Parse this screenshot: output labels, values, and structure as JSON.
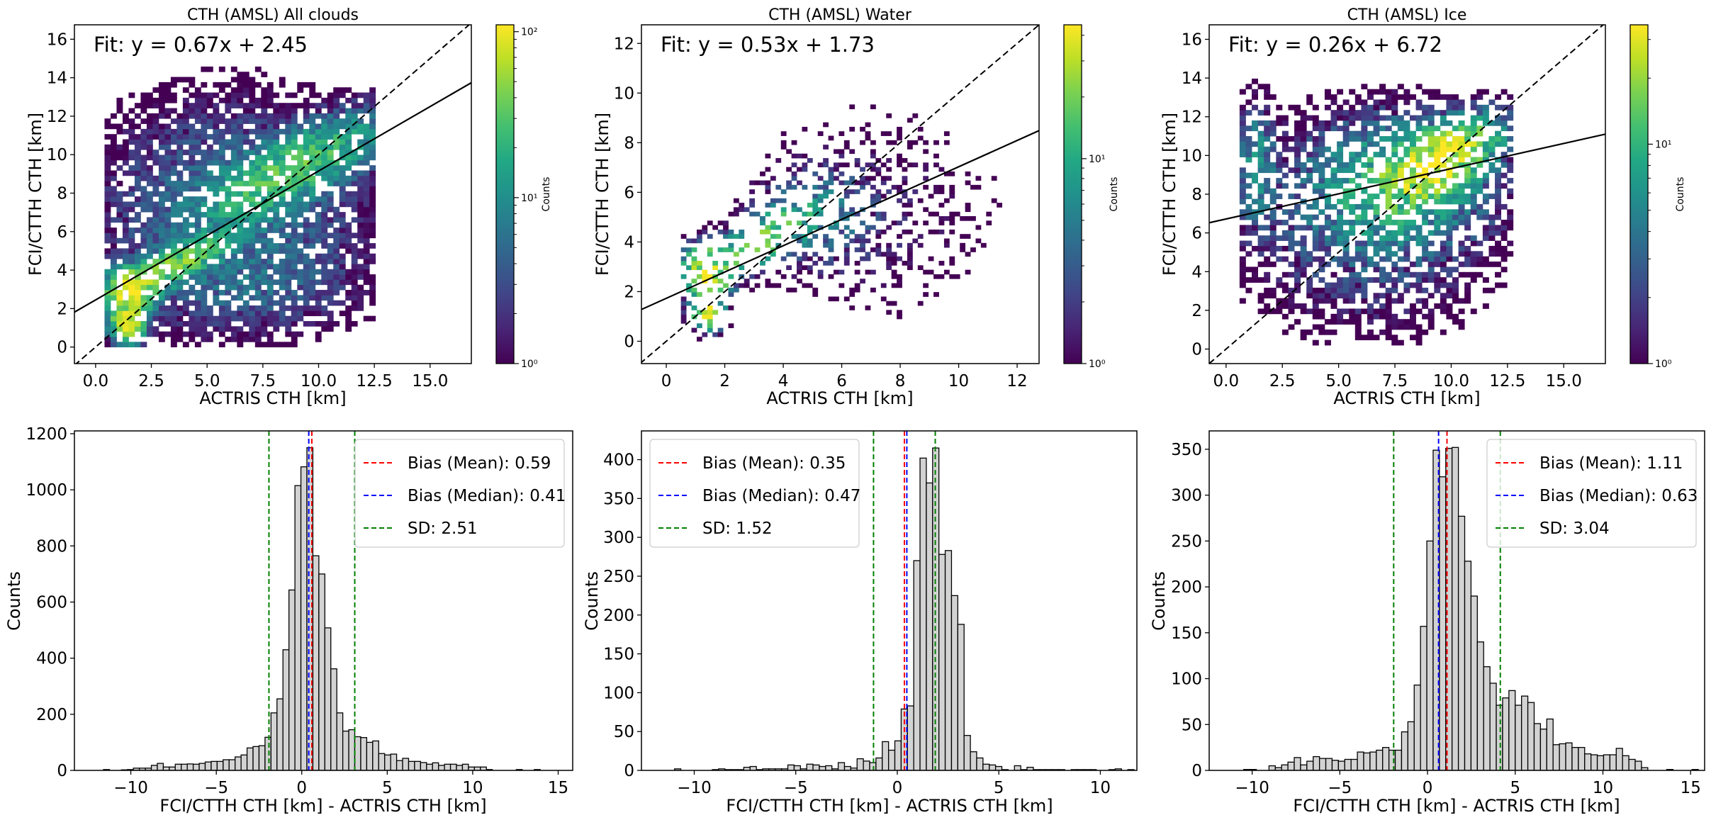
{
  "chart_data": [
    {
      "type": "heatmap",
      "panel": "scatter-all",
      "title": "CTH (AMSL) All clouds",
      "xlabel": "ACTRIS CTH [km]",
      "ylabel": "FCI/CTTH CTH [km]",
      "xlim": [
        -0.95,
        16.85
      ],
      "ylim": [
        -0.86,
        16.75
      ],
      "xticks": [
        0.0,
        2.5,
        5.0,
        7.5,
        10.0,
        12.5,
        15.0
      ],
      "xtick_labels": [
        "0.0",
        "2.5",
        "5.0",
        "7.5",
        "10.0",
        "12.5",
        "15.0"
      ],
      "yticks": [
        0,
        2,
        4,
        6,
        8,
        10,
        12,
        14,
        16
      ],
      "ytick_labels": [
        "0",
        "2",
        "4",
        "6",
        "8",
        "10",
        "12",
        "14",
        "16"
      ],
      "fit_text": "Fit: y = 0.67x + 2.45",
      "fit": {
        "slope": 0.67,
        "intercept": 2.45
      },
      "one_to_one": true,
      "bin_size": 0.27,
      "colorbar": {
        "label": "Counts",
        "scale": "log",
        "range": [
          1,
          110
        ],
        "ticks": [
          1,
          10,
          100
        ],
        "tick_labels": [
          "10⁰",
          "10¹",
          "10²"
        ]
      },
      "density_model": {
        "x_range": [
          0.4,
          12.4
        ],
        "y_range": [
          0.0,
          15.3
        ],
        "seed": 11,
        "components": [
          {
            "cx": 1.3,
            "cy": 1.1,
            "sx": 0.4,
            "sy": 0.5,
            "peak": 100
          },
          {
            "cx": 1.4,
            "cy": 2.8,
            "sx": 0.6,
            "sy": 0.6,
            "peak": 90
          },
          {
            "cx": 3.2,
            "cy": 4.0,
            "sx": 1.4,
            "sy": 0.9,
            "peak": 45,
            "rho": 0.8
          },
          {
            "cx": 8.8,
            "cy": 9.2,
            "sx": 2.2,
            "sy": 1.5,
            "peak": 30,
            "rho": 0.75
          },
          {
            "cx": 6.0,
            "cy": 7.0,
            "sx": 3.5,
            "sy": 3.2,
            "peak": 6
          },
          {
            "cx": 6.5,
            "cy": 3.0,
            "sx": 3.0,
            "sy": 1.3,
            "peak": 3
          }
        ],
        "fill_prob": 0.8
      }
    },
    {
      "type": "heatmap",
      "panel": "scatter-water",
      "title": "CTH (AMSL) Water",
      "xlabel": "ACTRIS CTH [km]",
      "ylabel": "FCI/CTTH CTH [km]",
      "xlim": [
        -0.85,
        12.75
      ],
      "ylim": [
        -0.9,
        12.75
      ],
      "xticks": [
        0,
        2,
        4,
        6,
        8,
        10,
        12
      ],
      "xtick_labels": [
        "0",
        "2",
        "4",
        "6",
        "8",
        "10",
        "12"
      ],
      "yticks": [
        0,
        2,
        4,
        6,
        8,
        10,
        12
      ],
      "ytick_labels": [
        "0",
        "2",
        "4",
        "6",
        "8",
        "10",
        "12"
      ],
      "fit_text": "Fit: y = 0.53x + 1.73",
      "fit": {
        "slope": 0.53,
        "intercept": 1.73
      },
      "one_to_one": true,
      "bin_size": 0.18,
      "colorbar": {
        "label": "Counts",
        "scale": "log",
        "range": [
          1,
          45
        ],
        "ticks": [
          1,
          10
        ],
        "tick_labels": [
          "10⁰",
          "10¹"
        ]
      },
      "density_model": {
        "x_range": [
          0.5,
          11.9
        ],
        "y_range": [
          0.0,
          11.3
        ],
        "seed": 23,
        "components": [
          {
            "cx": 1.3,
            "cy": 1.1,
            "sx": 0.3,
            "sy": 0.4,
            "peak": 40
          },
          {
            "cx": 1.3,
            "cy": 2.7,
            "sx": 0.5,
            "sy": 0.6,
            "peak": 35
          },
          {
            "cx": 3.2,
            "cy": 4.0,
            "sx": 1.0,
            "sy": 0.8,
            "peak": 18,
            "rho": 0.7
          },
          {
            "cx": 5.0,
            "cy": 5.0,
            "sx": 1.2,
            "sy": 1.1,
            "peak": 4
          },
          {
            "cx": 7.0,
            "cy": 5.0,
            "sx": 3.0,
            "sy": 3.0,
            "peak": 1.2
          }
        ],
        "fill_prob": 0.35
      }
    },
    {
      "type": "heatmap",
      "panel": "scatter-ice",
      "title": "CTH (AMSL) Ice",
      "xlabel": "ACTRIS CTH [km]",
      "ylabel": "FCI/CTTH CTH [km]",
      "xlim": [
        -0.75,
        16.85
      ],
      "ylim": [
        -0.75,
        16.75
      ],
      "xticks": [
        0.0,
        2.5,
        5.0,
        7.5,
        10.0,
        12.5,
        15.0
      ],
      "xtick_labels": [
        "0.0",
        "2.5",
        "5.0",
        "7.5",
        "10.0",
        "12.5",
        "15.0"
      ],
      "yticks": [
        0,
        2,
        4,
        6,
        8,
        10,
        12,
        14,
        16
      ],
      "ytick_labels": [
        "0",
        "2",
        "4",
        "6",
        "8",
        "10",
        "12",
        "14",
        "16"
      ],
      "fit_text": "Fit: y = 0.26x + 6.72",
      "fit": {
        "slope": 0.26,
        "intercept": 6.72
      },
      "one_to_one": true,
      "bin_size": 0.27,
      "colorbar": {
        "label": "Counts",
        "scale": "log",
        "range": [
          1,
          35
        ],
        "ticks": [
          1,
          10
        ],
        "tick_labels": [
          "10⁰",
          "10¹"
        ]
      },
      "density_model": {
        "x_range": [
          0.6,
          12.5
        ],
        "y_range": [
          0.2,
          15.0
        ],
        "seed": 37,
        "components": [
          {
            "cx": 9.3,
            "cy": 9.6,
            "sx": 1.5,
            "sy": 1.2,
            "peak": 30,
            "rho": 0.6
          },
          {
            "cx": 7.5,
            "cy": 8.5,
            "sx": 2.5,
            "sy": 2.0,
            "peak": 8
          },
          {
            "cx": 1.2,
            "cy": 9.5,
            "sx": 0.5,
            "sy": 2.0,
            "peak": 5
          },
          {
            "cx": 6.0,
            "cy": 6.0,
            "sx": 3.5,
            "sy": 3.5,
            "peak": 2.5
          }
        ],
        "fill_prob": 0.65
      }
    },
    {
      "type": "bar",
      "panel": "hist-all",
      "xlabel": "FCI/CTTH CTH [km] - ACTRIS CTH [km]",
      "ylabel": "Counts",
      "xlim": [
        -13.3,
        15.85
      ],
      "ylim": [
        0,
        1210
      ],
      "xticks": [
        -10,
        -5,
        0,
        5,
        10,
        15
      ],
      "xtick_labels": [
        "−10",
        "−5",
        "0",
        "5",
        "10",
        "15"
      ],
      "yticks": [
        0,
        200,
        400,
        600,
        800,
        1000,
        1200
      ],
      "ytick_labels": [
        "0",
        "200",
        "400",
        "600",
        "800",
        "1000",
        "1200"
      ],
      "bin_start": -11.95,
      "bin_width": 0.35,
      "values": [
        0,
        3,
        0,
        0,
        2,
        3,
        8,
        8,
        8,
        18,
        25,
        12,
        12,
        22,
        22,
        23,
        22,
        25,
        30,
        32,
        32,
        38,
        38,
        48,
        55,
        80,
        85,
        88,
        118,
        205,
        255,
        430,
        643,
        1015,
        1082,
        1150,
        765,
        700,
        508,
        362,
        205,
        140,
        145,
        120,
        117,
        100,
        105,
        60,
        55,
        58,
        35,
        43,
        32,
        32,
        28,
        22,
        27,
        18,
        22,
        22,
        18,
        22,
        12,
        12,
        12,
        3,
        0,
        0,
        0,
        0,
        3,
        0,
        0,
        3,
        0,
        0,
        0
      ],
      "lines": [
        {
          "name": "Bias (Mean)",
          "value": 0.59,
          "color": "#ff0000",
          "label": "Bias (Mean): 0.59"
        },
        {
          "name": "Bias (Median)",
          "value": 0.41,
          "color": "#0000ff",
          "label": "Bias (Median): 0.41"
        },
        {
          "name": "SD",
          "value": 2.51,
          "color": "#008000",
          "label": "SD: 2.51",
          "positions": [
            -1.92,
            3.1
          ]
        }
      ],
      "legend_position": "upper-right"
    },
    {
      "type": "bar",
      "panel": "hist-water",
      "xlabel": "FCI/CTTH CTH [km] - ACTRIS CTH [km]",
      "ylabel": "Counts",
      "xlim": [
        -12.6,
        11.8
      ],
      "ylim": [
        0,
        437
      ],
      "xticks": [
        -10,
        -5,
        0,
        5,
        10
      ],
      "xtick_labels": [
        "−10",
        "−5",
        "0",
        "5",
        "10"
      ],
      "yticks": [
        0,
        50,
        100,
        150,
        200,
        250,
        300,
        350,
        400
      ],
      "ytick_labels": [
        "0",
        "50",
        "100",
        "150",
        "200",
        "250",
        "300",
        "350",
        "400"
      ],
      "bin_start": -11.9,
      "bin_width": 0.31,
      "values": [
        0,
        0,
        0,
        2,
        0,
        0,
        0,
        0,
        0,
        1,
        2,
        1,
        1,
        1,
        4,
        5,
        1,
        2,
        2,
        2,
        2,
        7,
        6,
        2,
        8,
        7,
        5,
        6,
        2,
        10,
        5,
        3,
        15,
        12,
        10,
        16,
        37,
        26,
        38,
        79,
        83,
        270,
        402,
        370,
        415,
        278,
        283,
        225,
        188,
        45,
        24,
        16,
        8,
        7,
        5,
        1,
        0,
        6,
        1,
        4,
        1,
        1,
        1,
        1,
        1,
        0,
        1,
        1,
        1,
        1,
        0,
        0,
        1,
        2,
        0,
        1,
        0,
        0,
        0
      ],
      "lines": [
        {
          "name": "Bias (Mean)",
          "value": 0.35,
          "color": "#ff0000",
          "label": "Bias (Mean): 0.35"
        },
        {
          "name": "Bias (Median)",
          "value": 0.47,
          "color": "#0000ff",
          "label": "Bias (Median): 0.47"
        },
        {
          "name": "SD",
          "value": 1.52,
          "color": "#008000",
          "label": "SD: 1.52",
          "positions": [
            -1.17,
            1.87
          ]
        }
      ],
      "legend_position": "upper-left"
    },
    {
      "type": "bar",
      "panel": "hist-ice",
      "xlabel": "FCI/CTTH CTH [km] - ACTRIS CTH [km]",
      "ylabel": "Counts",
      "xlim": [
        -12.45,
        15.8
      ],
      "ylim": [
        0,
        370
      ],
      "xticks": [
        -10,
        -5,
        0,
        5,
        10,
        15
      ],
      "xtick_labels": [
        "−10",
        "−5",
        "0",
        "5",
        "10",
        "15"
      ],
      "yticks": [
        0,
        50,
        100,
        150,
        200,
        250,
        300,
        350
      ],
      "ytick_labels": [
        "0",
        "50",
        "100",
        "150",
        "200",
        "250",
        "300",
        "350"
      ],
      "bin_start": -11.2,
      "bin_width": 0.36,
      "values": [
        0,
        0,
        1,
        1,
        0,
        0,
        5,
        3,
        6,
        9,
        14,
        6,
        10,
        15,
        13,
        13,
        11,
        10,
        12,
        12,
        20,
        19,
        20,
        22,
        25,
        22,
        22,
        42,
        53,
        93,
        157,
        250,
        349,
        320,
        351,
        352,
        277,
        228,
        190,
        140,
        113,
        95,
        71,
        79,
        87,
        71,
        81,
        74,
        51,
        45,
        56,
        28,
        29,
        30,
        25,
        25,
        18,
        17,
        16,
        17,
        17,
        24,
        16,
        12,
        10,
        3,
        0,
        0,
        0,
        1,
        0,
        0,
        0,
        1,
        0,
        0,
        0,
        0
      ],
      "lines": [
        {
          "name": "Bias (Mean)",
          "value": 1.11,
          "color": "#ff0000",
          "label": "Bias (Mean): 1.11"
        },
        {
          "name": "Bias (Median)",
          "value": 0.63,
          "color": "#0000ff",
          "label": "Bias (Median): 0.63"
        },
        {
          "name": "SD",
          "value": 3.04,
          "color": "#008000",
          "label": "SD: 3.04",
          "positions": [
            -1.93,
            4.15
          ]
        }
      ],
      "legend_position": "upper-right"
    }
  ]
}
